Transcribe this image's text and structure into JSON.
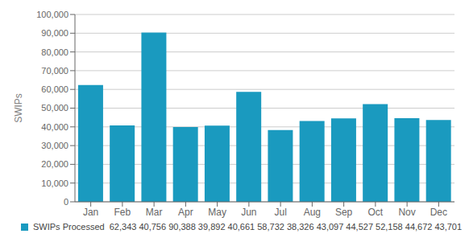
{
  "chart_data": {
    "type": "bar",
    "categories": [
      "Jan",
      "Feb",
      "Mar",
      "Apr",
      "May",
      "Jun",
      "Jul",
      "Aug",
      "Sep",
      "Oct",
      "Nov",
      "Dec"
    ],
    "series": [
      {
        "name": "SWIPs Processed  62,343 40,756 90,388 39,892 40,661 58,732 38,326 43,097 44,527 52,158 44,672 43,701",
        "color": "#1a9abf",
        "values": [
          62343,
          40756,
          90388,
          39892,
          40661,
          58732,
          38326,
          43097,
          44527,
          52158,
          44672,
          43701
        ]
      }
    ],
    "ylabel": "SWIPs",
    "ylim": [
      0,
      100000
    ],
    "yticks": [
      0,
      {
        "value": 10000,
        "label": "10,000"
      },
      {
        "value": 20000,
        "label": "20,000"
      },
      {
        "value": 30000,
        "label": "30,000"
      },
      {
        "value": 40000,
        "label": "40,000"
      },
      {
        "value": 50000,
        "label": "50,000"
      },
      {
        "value": 60000,
        "label": "60,000"
      },
      {
        "value": 70000,
        "label": "70,000"
      },
      {
        "value": 80000,
        "label": "80,000"
      },
      {
        "value": 90000,
        "label": "90,000"
      },
      {
        "value": 100000,
        "label": "100,000"
      }
    ],
    "grid": true,
    "legend": "lower left"
  }
}
